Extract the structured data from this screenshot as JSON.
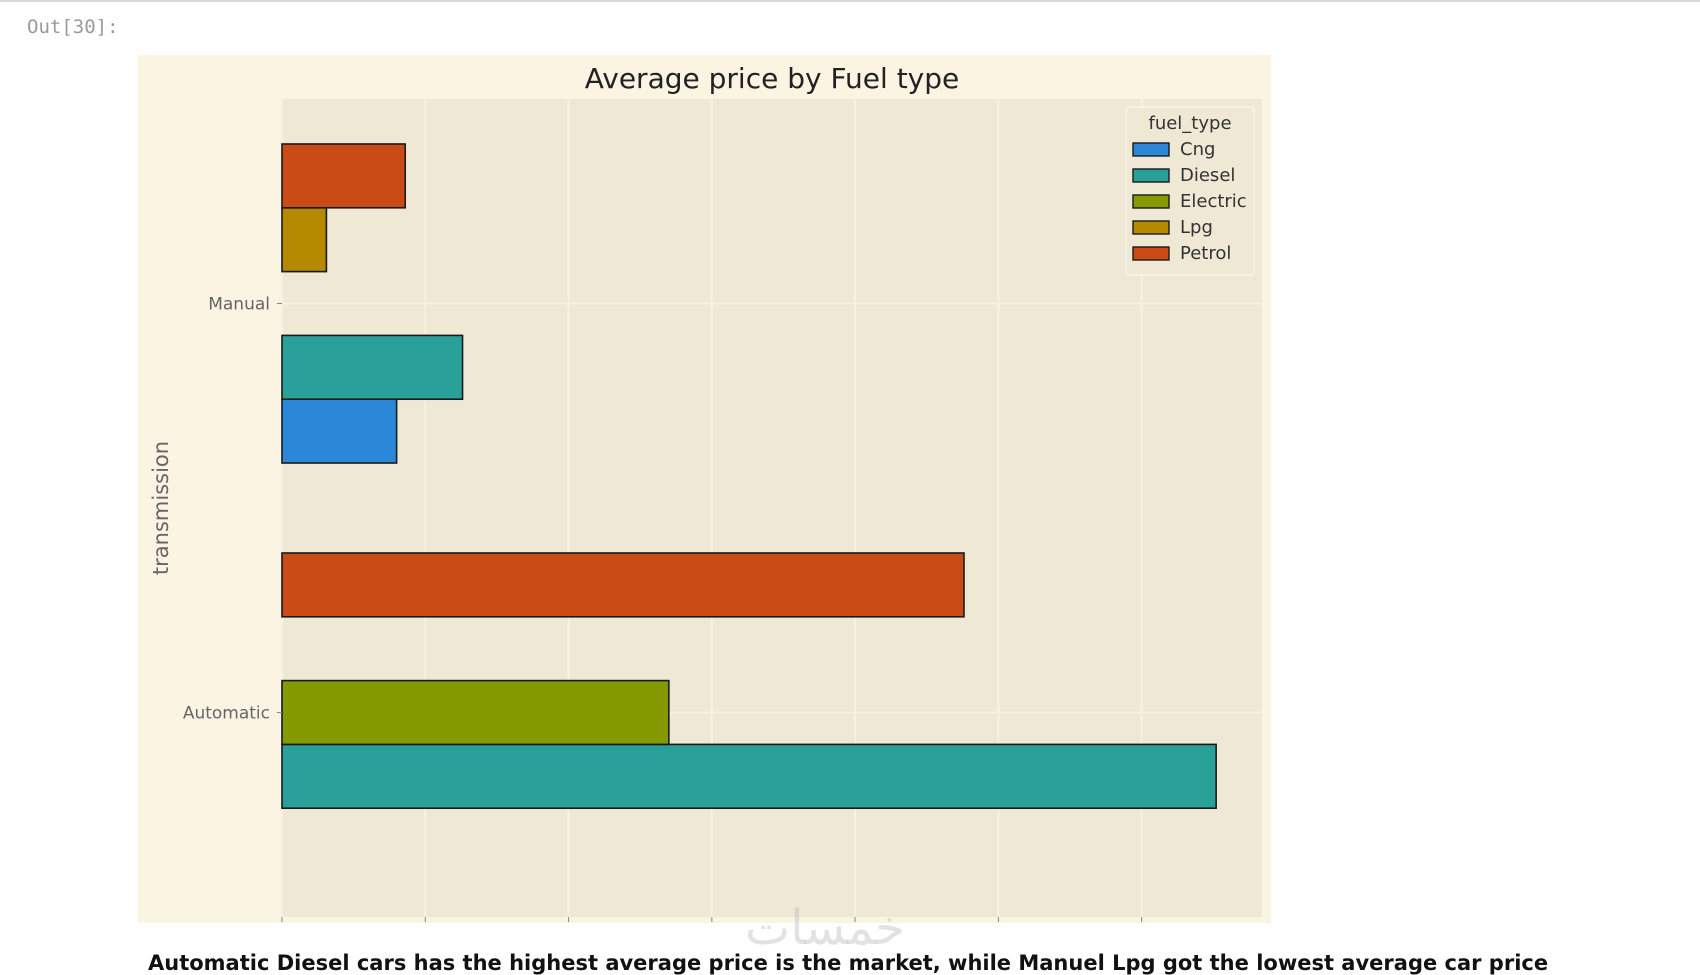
{
  "cell": {
    "out_prompt": "Out[30]:"
  },
  "chart_data": {
    "type": "bar",
    "orientation": "horizontal",
    "title": "Average price by Fuel type",
    "xlabel": "",
    "ylabel": "transmission",
    "x_offset_label": "1e6",
    "categories": [
      "Automatic",
      "Manual"
    ],
    "xlim": [
      0,
      3.42
    ],
    "xticks": [
      "0.0",
      "0.5",
      "1.0",
      "1.5",
      "2.0",
      "2.5",
      "3.0"
    ],
    "grid": true,
    "legend_title": "fuel_type",
    "legend_position": "top-right",
    "series": [
      {
        "name": "Cng",
        "color": "#2b88d8",
        "values": [
          0,
          0.4
        ]
      },
      {
        "name": "Diesel",
        "color": "#2aa198",
        "values": [
          3.26,
          0.63
        ]
      },
      {
        "name": "Electric",
        "color": "#859900",
        "values": [
          1.35,
          0
        ]
      },
      {
        "name": "Lpg",
        "color": "#b58900",
        "values": [
          0,
          0.155
        ]
      },
      {
        "name": "Petrol",
        "color": "#cb4b16",
        "values": [
          2.38,
          0.43
        ]
      }
    ],
    "colors": {
      "figure_bg": "#fcf4e3",
      "axes_bg": "#eee8d5",
      "grid": "#f6f1e3",
      "text": "#666666"
    }
  },
  "notes": {
    "conclusion": "Automatic Diesel cars has the highest average price is the market, while Manuel Lpg got the lowest average car price"
  },
  "watermark_text": "خمسات"
}
